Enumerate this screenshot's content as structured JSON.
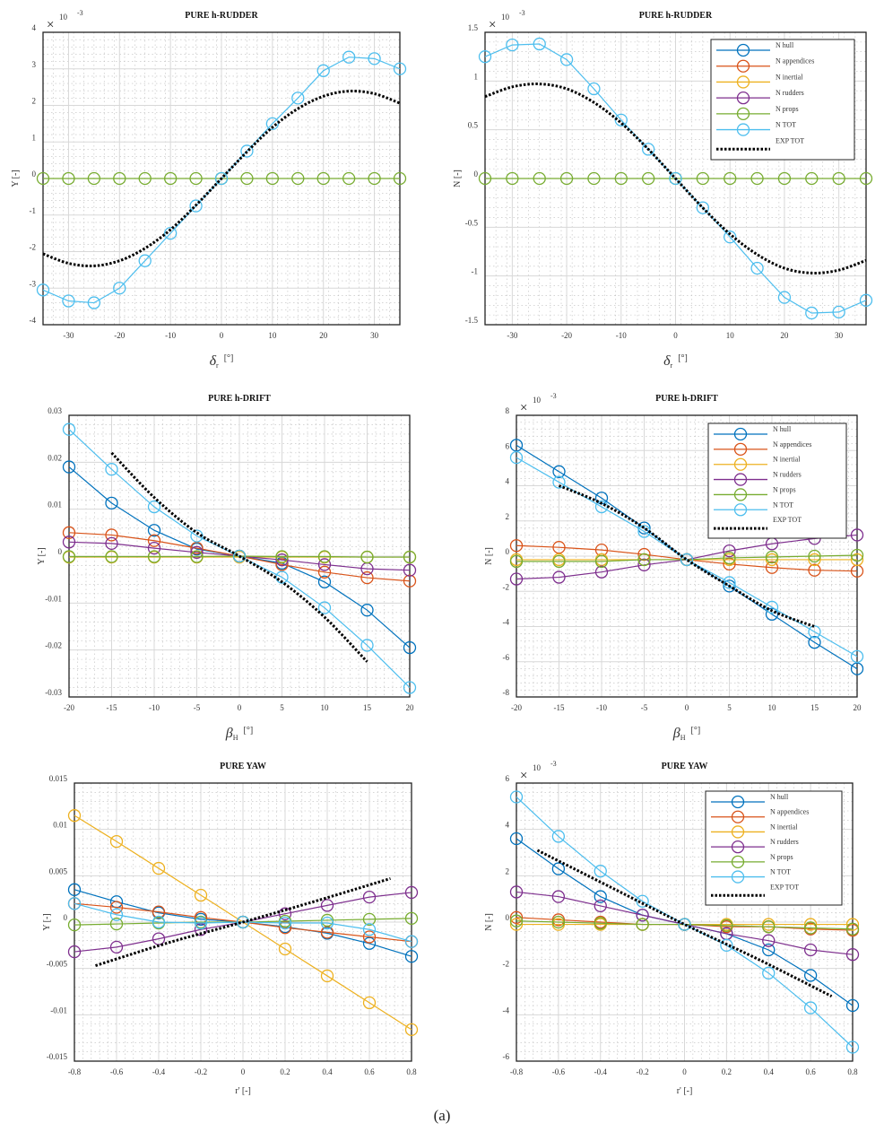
{
  "caption": "(a)",
  "colors": {
    "N hull": "#0072BD",
    "N appendices": "#D95319",
    "N inertial": "#EDB120",
    "N rudders": "#7E2F8E",
    "N props": "#77AC30",
    "N TOT": "#4DBEEE",
    "EXP TOT": "#000000"
  },
  "chart_data": [
    {
      "type": "line",
      "title": "PURE h-RUDDER",
      "ylabel": "Y [-]",
      "xlabel": {
        "symbol": "δ",
        "sub": "r",
        "unit": "[°]"
      },
      "exponent": "-3",
      "exponent_base": "10",
      "xlim": [
        -35,
        35
      ],
      "ylim": [
        -4,
        4
      ],
      "xticks": [
        -30,
        -20,
        -10,
        0,
        10,
        20,
        30
      ],
      "yticks": [
        -4,
        -3,
        -2,
        -1,
        0,
        1,
        2,
        3,
        4
      ],
      "grid": true,
      "legend": null,
      "x": [
        -35,
        -30,
        -25,
        -20,
        -15,
        -10,
        -5,
        0,
        5,
        10,
        15,
        20,
        25,
        30,
        35
      ],
      "series": [
        {
          "name": "N props",
          "values": [
            0,
            0,
            0,
            0,
            0,
            0,
            0,
            0,
            0,
            0,
            0,
            0,
            0,
            0,
            0
          ]
        },
        {
          "name": "N TOT",
          "values": [
            -3.05,
            -3.35,
            -3.4,
            -3.0,
            -2.25,
            -1.5,
            -0.75,
            0,
            0.75,
            1.5,
            2.2,
            2.95,
            3.32,
            3.28,
            3.0
          ]
        }
      ],
      "exp": {
        "name": "EXP TOT",
        "x": [
          -35,
          -30,
          -25,
          -20,
          -15,
          -10,
          -5,
          0,
          5,
          10,
          15,
          20,
          25,
          30,
          35
        ],
        "values": [
          -2.06,
          -2.32,
          -2.39,
          -2.25,
          -1.91,
          -1.4,
          -0.73,
          0,
          0.73,
          1.4,
          1.91,
          2.25,
          2.39,
          2.32,
          2.06
        ]
      }
    },
    {
      "type": "line",
      "title": "PURE h-RUDDER",
      "ylabel": "N [-]",
      "xlabel": {
        "symbol": "δ",
        "sub": "r",
        "unit": "[°]"
      },
      "exponent": "-3",
      "exponent_base": "10",
      "xlim": [
        -35,
        35
      ],
      "ylim": [
        -1.5,
        1.5
      ],
      "xticks": [
        -30,
        -20,
        -10,
        0,
        10,
        20,
        30
      ],
      "yticks": [
        -1.5,
        -1,
        -0.5,
        0,
        0.5,
        1,
        1.5
      ],
      "grid": true,
      "legend": "top-right",
      "legend_entries": [
        "N hull",
        "N appendices",
        "N inertial",
        "N rudders",
        "N props",
        "N TOT",
        "EXP TOT"
      ],
      "x": [
        -35,
        -30,
        -25,
        -20,
        -15,
        -10,
        -5,
        0,
        5,
        10,
        15,
        20,
        25,
        30,
        35
      ],
      "series": [
        {
          "name": "N props",
          "values": [
            0,
            0,
            0,
            0,
            0,
            0,
            0,
            0,
            0,
            0,
            0,
            0,
            0,
            0,
            0
          ]
        },
        {
          "name": "N TOT",
          "values": [
            1.25,
            1.37,
            1.38,
            1.22,
            0.92,
            0.6,
            0.3,
            0,
            -0.3,
            -0.6,
            -0.92,
            -1.22,
            -1.38,
            -1.37,
            -1.25
          ]
        }
      ],
      "exp": {
        "name": "EXP TOT",
        "x": [
          -35,
          -30,
          -25,
          -20,
          -15,
          -10,
          -5,
          0,
          5,
          10,
          15,
          20,
          25,
          30,
          35
        ],
        "values": [
          0.84,
          0.94,
          0.97,
          0.92,
          0.78,
          0.57,
          0.3,
          0,
          -0.3,
          -0.57,
          -0.78,
          -0.92,
          -0.97,
          -0.94,
          -0.84
        ]
      }
    },
    {
      "type": "line",
      "title": "PURE h-DRIFT",
      "ylabel": "Y [-]",
      "xlabel": {
        "symbol": "β",
        "sub": "H",
        "unit": "[°]"
      },
      "exponent": null,
      "xlim": [
        -20,
        20
      ],
      "ylim": [
        -0.03,
        0.03
      ],
      "xticks": [
        -20,
        -15,
        -10,
        -5,
        0,
        5,
        10,
        15,
        20
      ],
      "yticks": [
        -0.03,
        -0.02,
        -0.01,
        0,
        0.01,
        0.02,
        0.03
      ],
      "grid": true,
      "legend": null,
      "x": [
        -20,
        -15,
        -10,
        -5,
        0,
        5,
        10,
        15,
        20
      ],
      "series": [
        {
          "name": "N hull",
          "values": [
            0.019,
            0.0113,
            0.0055,
            0.0015,
            0,
            -0.0015,
            -0.0055,
            -0.0115,
            -0.0195
          ]
        },
        {
          "name": "N appendices",
          "values": [
            0.005,
            0.0045,
            0.0033,
            0.0017,
            0,
            -0.0018,
            -0.0034,
            -0.0046,
            -0.0053
          ]
        },
        {
          "name": "N inertial",
          "values": [
            -0.0002,
            -0.0002,
            -0.0002,
            -0.0002,
            -0.0002,
            -0.0002,
            -0.0002,
            -0.0002,
            -0.0002
          ]
        },
        {
          "name": "N rudders",
          "values": [
            0.003,
            0.0027,
            0.0017,
            0.0008,
            0,
            -0.0008,
            -0.0018,
            -0.0027,
            -0.003
          ]
        },
        {
          "name": "N props",
          "values": [
            -0.0001,
            -0.0001,
            -0.0001,
            -0.0001,
            0,
            -0.0001,
            -0.0001,
            -0.0002,
            -0.0002
          ]
        },
        {
          "name": "N TOT",
          "values": [
            0.027,
            0.0185,
            0.0105,
            0.0043,
            0,
            -0.0045,
            -0.011,
            -0.019,
            -0.028
          ]
        }
      ],
      "exp": {
        "name": "EXP TOT",
        "x": [
          -15,
          -10,
          -5,
          0,
          5,
          10,
          15
        ],
        "values": [
          0.022,
          0.0125,
          0.005,
          0,
          -0.0055,
          -0.013,
          -0.0225
        ]
      }
    },
    {
      "type": "line",
      "title": "PURE h-DRIFT",
      "ylabel": "N [-]",
      "xlabel": {
        "symbol": "β",
        "sub": "H",
        "unit": "[°]"
      },
      "exponent": "-3",
      "exponent_base": "10",
      "xlim": [
        -20,
        20
      ],
      "ylim": [
        -8,
        8
      ],
      "xticks": [
        -20,
        -15,
        -10,
        -5,
        0,
        5,
        10,
        15,
        20
      ],
      "yticks": [
        -8,
        -6,
        -4,
        -2,
        0,
        2,
        4,
        6,
        8
      ],
      "grid": true,
      "legend": "top-right",
      "legend_entries": [
        "N hull",
        "N appendices",
        "N inertial",
        "N rudders",
        "N props",
        "N TOT",
        "EXP TOT"
      ],
      "x": [
        -20,
        -15,
        -10,
        -5,
        0,
        5,
        10,
        15,
        20
      ],
      "series": [
        {
          "name": "N hull",
          "values": [
            6.3,
            4.8,
            3.3,
            1.6,
            -0.2,
            -1.7,
            -3.3,
            -4.9,
            -6.4
          ]
        },
        {
          "name": "N appendices",
          "values": [
            0.6,
            0.5,
            0.35,
            0.1,
            -0.2,
            -0.45,
            -0.65,
            -0.8,
            -0.85
          ]
        },
        {
          "name": "N inertial",
          "values": [
            -0.2,
            -0.2,
            -0.2,
            -0.2,
            -0.2,
            -0.2,
            -0.2,
            -0.2,
            -0.2
          ]
        },
        {
          "name": "N rudders",
          "values": [
            -1.3,
            -1.2,
            -0.9,
            -0.5,
            -0.2,
            0.3,
            0.7,
            1.0,
            1.2
          ]
        },
        {
          "name": "N props",
          "values": [
            -0.3,
            -0.3,
            -0.3,
            -0.2,
            -0.2,
            -0.1,
            -0.05,
            0,
            0.05
          ]
        },
        {
          "name": "N TOT",
          "values": [
            5.6,
            4.2,
            2.8,
            1.4,
            -0.2,
            -1.5,
            -2.9,
            -4.3,
            -5.7
          ]
        }
      ],
      "exp": {
        "name": "EXP TOT",
        "x": [
          -15,
          -10,
          -5,
          0,
          5,
          10,
          15
        ],
        "values": [
          4.0,
          3.0,
          1.6,
          -0.2,
          -1.7,
          -3.1,
          -4.0
        ]
      }
    },
    {
      "type": "line",
      "title": "PURE YAW",
      "ylabel": "Y [-]",
      "xlabel": {
        "symbol": "r' [-]",
        "sub": "",
        "unit": ""
      },
      "exponent": null,
      "xlim": [
        -0.8,
        0.8
      ],
      "ylim": [
        -0.015,
        0.015
      ],
      "xticks": [
        -0.8,
        -0.6,
        -0.4,
        -0.2,
        0,
        0.2,
        0.4,
        0.6,
        0.8
      ],
      "yticks": [
        -0.015,
        -0.01,
        -0.005,
        0,
        0.005,
        0.01,
        0.015
      ],
      "grid": true,
      "legend": null,
      "x": [
        -0.8,
        -0.6,
        -0.4,
        -0.2,
        0,
        0.2,
        0.4,
        0.6,
        0.8
      ],
      "series": [
        {
          "name": "N hull",
          "values": [
            0.0035,
            0.0022,
            0.001,
            0.0003,
            0,
            -0.0005,
            -0.0012,
            -0.0023,
            -0.0037
          ]
        },
        {
          "name": "N appendices",
          "values": [
            0.002,
            0.0016,
            0.0011,
            0.0005,
            0,
            -0.0006,
            -0.0011,
            -0.0016,
            -0.0021
          ]
        },
        {
          "name": "N inertial",
          "values": [
            0.0115,
            0.0087,
            0.0058,
            0.0029,
            0,
            -0.0029,
            -0.0058,
            -0.0087,
            -0.0116
          ]
        },
        {
          "name": "N rudders",
          "values": [
            -0.0032,
            -0.0027,
            -0.0018,
            -0.0008,
            0,
            0.0009,
            0.0018,
            0.0027,
            0.0032
          ]
        },
        {
          "name": "N props",
          "values": [
            -0.0003,
            -0.0002,
            -0.0001,
            0,
            0,
            0.0001,
            0.0002,
            0.0003,
            0.0004
          ]
        },
        {
          "name": "N TOT",
          "values": [
            0.002,
            0.0008,
            0,
            -0.0001,
            0,
            -0.0001,
            -0.0001,
            -0.0008,
            -0.0021
          ]
        }
      ],
      "exp": {
        "name": "EXP TOT",
        "x": [
          -0.7,
          -0.35,
          0,
          0.35,
          0.7
        ],
        "values": [
          -0.0047,
          -0.0022,
          0,
          0.0023,
          0.0047
        ]
      }
    },
    {
      "type": "line",
      "title": "PURE YAW",
      "ylabel": "N [-]",
      "xlabel": {
        "symbol": "r' [-]",
        "sub": "",
        "unit": ""
      },
      "exponent": "-3",
      "exponent_base": "10",
      "xlim": [
        -0.8,
        0.8
      ],
      "ylim": [
        -6,
        6
      ],
      "xticks": [
        -0.8,
        -0.6,
        -0.4,
        -0.2,
        0,
        0.2,
        0.4,
        0.6,
        0.8
      ],
      "yticks": [
        -6,
        -4,
        -2,
        0,
        2,
        4,
        6
      ],
      "grid": true,
      "legend": "top-right",
      "legend_entries": [
        "N hull",
        "N appendices",
        "N inertial",
        "N rudders",
        "N props",
        "N TOT",
        "EXP TOT"
      ],
      "x": [
        -0.8,
        -0.6,
        -0.4,
        -0.2,
        0,
        0.2,
        0.4,
        0.6,
        0.8
      ],
      "series": [
        {
          "name": "N hull",
          "values": [
            3.6,
            2.3,
            1.1,
            0.3,
            -0.1,
            -0.5,
            -1.2,
            -2.3,
            -3.6
          ]
        },
        {
          "name": "N appendices",
          "values": [
            0.2,
            0.1,
            0,
            -0.1,
            -0.1,
            -0.2,
            -0.2,
            -0.3,
            -0.35
          ]
        },
        {
          "name": "N inertial",
          "values": [
            -0.1,
            -0.1,
            -0.1,
            -0.1,
            -0.1,
            -0.1,
            -0.1,
            -0.1,
            -0.1
          ]
        },
        {
          "name": "N rudders",
          "values": [
            1.3,
            1.1,
            0.7,
            0.3,
            -0.1,
            -0.5,
            -0.8,
            -1.2,
            -1.4
          ]
        },
        {
          "name": "N props",
          "values": [
            0.05,
            0,
            -0.05,
            -0.1,
            -0.1,
            -0.15,
            -0.2,
            -0.25,
            -0.3
          ]
        },
        {
          "name": "N TOT",
          "values": [
            5.4,
            3.7,
            2.2,
            0.9,
            -0.1,
            -1.0,
            -2.2,
            -3.7,
            -5.4
          ]
        }
      ],
      "exp": {
        "name": "EXP TOT",
        "x": [
          -0.7,
          -0.35,
          0,
          0.35,
          0.7
        ],
        "values": [
          3.1,
          1.5,
          -0.1,
          -1.6,
          -3.2
        ]
      }
    }
  ]
}
